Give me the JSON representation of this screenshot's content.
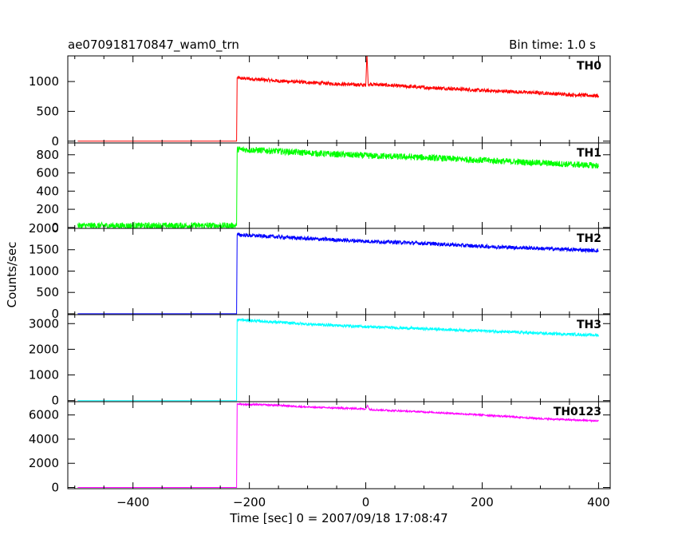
{
  "title": "ae070918170847_wam0_trn",
  "bin_time": "Bin time: 1.0 s",
  "chart_data": {
    "type": "line",
    "title": "ae070918170847_wam0_trn",
    "xlabel": "Time [sec] 0 = 2007/09/18 17:08:47",
    "ylabel": "Counts/sec",
    "xlim": [
      -512,
      420
    ],
    "x_ticks": [
      -400,
      -200,
      0,
      200,
      400
    ],
    "shared_x": true,
    "grid": false,
    "panels": [
      {
        "name": "TH0",
        "color": "#ff0000",
        "ylim": [
          -30,
          1430
        ],
        "y_ticks": [
          0,
          500,
          1000
        ],
        "points": [
          [
            -495,
            0
          ],
          [
            -222,
            0
          ],
          [
            -221,
            1060
          ],
          [
            -150,
            1010
          ],
          [
            -50,
            960
          ],
          [
            0,
            940
          ],
          [
            2,
            1480
          ],
          [
            4,
            960
          ],
          [
            50,
            930
          ],
          [
            100,
            900
          ],
          [
            150,
            880
          ],
          [
            200,
            850
          ],
          [
            250,
            830
          ],
          [
            300,
            810
          ],
          [
            350,
            780
          ],
          [
            400,
            760
          ]
        ],
        "noise": 30
      },
      {
        "name": "TH1",
        "color": "#00ff00",
        "ylim": [
          -10,
          930
        ],
        "y_ticks": [
          0,
          200,
          400,
          600,
          800
        ],
        "points": [
          [
            -495,
            20
          ],
          [
            -222,
            20
          ],
          [
            -221,
            860
          ],
          [
            -150,
            840
          ],
          [
            -100,
            820
          ],
          [
            0,
            790
          ],
          [
            100,
            770
          ],
          [
            200,
            740
          ],
          [
            300,
            710
          ],
          [
            400,
            680
          ]
        ],
        "noise": 35
      },
      {
        "name": "TH2",
        "color": "#0000ff",
        "ylim": [
          -20,
          2000
        ],
        "y_ticks": [
          0,
          500,
          1000,
          1500,
          2000
        ],
        "points": [
          [
            -495,
            0
          ],
          [
            -222,
            0
          ],
          [
            -221,
            1850
          ],
          [
            -150,
            1800
          ],
          [
            -100,
            1760
          ],
          [
            0,
            1700
          ],
          [
            100,
            1650
          ],
          [
            200,
            1580
          ],
          [
            300,
            1530
          ],
          [
            400,
            1480
          ]
        ],
        "noise": 45
      },
      {
        "name": "TH3",
        "color": "#00ffff",
        "ylim": [
          -40,
          3350
        ],
        "y_ticks": [
          0,
          1000,
          2000,
          3000
        ],
        "points": [
          [
            -495,
            0
          ],
          [
            -222,
            0
          ],
          [
            -221,
            3150
          ],
          [
            -150,
            3050
          ],
          [
            -100,
            2980
          ],
          [
            0,
            2880
          ],
          [
            100,
            2800
          ],
          [
            200,
            2720
          ],
          [
            300,
            2620
          ],
          [
            400,
            2550
          ]
        ],
        "noise": 55
      },
      {
        "name": "TH0123",
        "color": "#ff00ff",
        "ylim": [
          -100,
          7100
        ],
        "y_ticks": [
          0,
          2000,
          4000,
          6000
        ],
        "points": [
          [
            -495,
            0
          ],
          [
            -222,
            0
          ],
          [
            -221,
            6900
          ],
          [
            -150,
            6800
          ],
          [
            -100,
            6650
          ],
          [
            0,
            6500
          ],
          [
            3,
            6800
          ],
          [
            6,
            6450
          ],
          [
            100,
            6250
          ],
          [
            200,
            6000
          ],
          [
            300,
            5700
          ],
          [
            400,
            5500
          ]
        ],
        "noise": 70
      }
    ]
  }
}
